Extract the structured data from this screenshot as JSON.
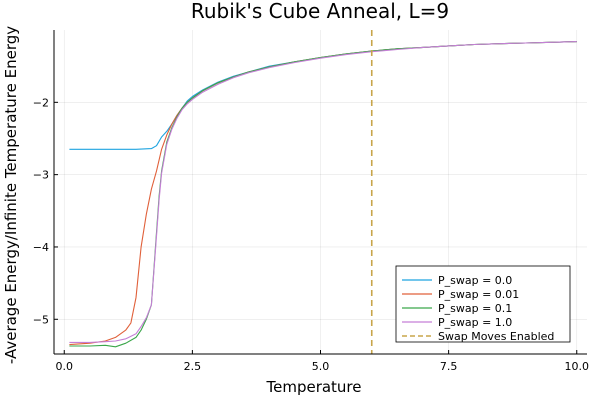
{
  "chart_data": {
    "type": "line",
    "title": "Rubik's Cube Anneal, L=9",
    "xlabel": "Temperature",
    "ylabel": "-Average Energy/Infinite Temperature Energy",
    "xlim": [
      -0.2,
      10.2
    ],
    "ylim": [
      -5.48,
      -1.0
    ],
    "xticks": [
      0.0,
      2.5,
      5.0,
      7.5,
      10.0
    ],
    "xtick_labels": [
      "0.0",
      "2.5",
      "5.0",
      "7.5",
      "10.0"
    ],
    "yticks": [
      -5,
      -4,
      -3,
      -2
    ],
    "ytick_labels": [
      "−5",
      "−4",
      "−3",
      "−2"
    ],
    "grid": true,
    "legend_position": "bottom-right",
    "vline": {
      "name": "Swap Moves Enabled",
      "x": 6.0,
      "color": "#c8a54a",
      "style": "dashed"
    },
    "series": [
      {
        "name": "P_swap = 0.0",
        "color": "#1fa4e0",
        "x": [
          0.1,
          0.5,
          1.0,
          1.4,
          1.7,
          1.8,
          1.9,
          2.0,
          2.1,
          2.2,
          2.3,
          2.4,
          2.5,
          2.7,
          3.0,
          3.3,
          3.6,
          4.0,
          4.5,
          5.0,
          5.5,
          6.0,
          6.5,
          7.0,
          7.5,
          8.0,
          8.5,
          9.0,
          9.5,
          10.0
        ],
        "y": [
          -2.65,
          -2.65,
          -2.65,
          -2.65,
          -2.64,
          -2.6,
          -2.48,
          -2.4,
          -2.3,
          -2.18,
          -2.08,
          -1.98,
          -1.92,
          -1.83,
          -1.72,
          -1.64,
          -1.58,
          -1.5,
          -1.44,
          -1.38,
          -1.33,
          -1.29,
          -1.26,
          -1.24,
          -1.22,
          -1.2,
          -1.19,
          -1.18,
          -1.17,
          -1.16
        ]
      },
      {
        "name": "P_swap = 0.01",
        "color": "#e0603a",
        "x": [
          0.1,
          0.5,
          0.8,
          1.0,
          1.2,
          1.3,
          1.4,
          1.5,
          1.6,
          1.7,
          1.8,
          1.9,
          2.0,
          2.1,
          2.2,
          2.3,
          2.4,
          2.5,
          2.7,
          3.0,
          3.3,
          3.6,
          4.0,
          4.5,
          5.0,
          5.5,
          6.0,
          6.5,
          7.0,
          7.5,
          8.0,
          8.5,
          9.0,
          9.5,
          10.0
        ],
        "y": [
          -5.35,
          -5.33,
          -5.3,
          -5.25,
          -5.15,
          -5.05,
          -4.7,
          -4.0,
          -3.55,
          -3.2,
          -2.95,
          -2.65,
          -2.45,
          -2.3,
          -2.18,
          -2.08,
          -2.0,
          -1.94,
          -1.84,
          -1.73,
          -1.65,
          -1.58,
          -1.51,
          -1.44,
          -1.38,
          -1.33,
          -1.29,
          -1.26,
          -1.24,
          -1.22,
          -1.2,
          -1.19,
          -1.18,
          -1.17,
          -1.16
        ]
      },
      {
        "name": "P_swap = 0.1",
        "color": "#3aa64a",
        "x": [
          0.1,
          0.5,
          0.8,
          1.0,
          1.2,
          1.4,
          1.5,
          1.6,
          1.7,
          1.8,
          1.85,
          1.9,
          2.0,
          2.1,
          2.2,
          2.3,
          2.4,
          2.5,
          2.7,
          3.0,
          3.3,
          3.6,
          4.0,
          4.5,
          5.0,
          5.5,
          6.0,
          6.5,
          7.0,
          7.5,
          8.0,
          8.5,
          9.0,
          9.5,
          10.0
        ],
        "y": [
          -5.37,
          -5.37,
          -5.36,
          -5.38,
          -5.33,
          -5.25,
          -5.15,
          -5.0,
          -4.8,
          -3.8,
          -3.3,
          -2.95,
          -2.55,
          -2.35,
          -2.2,
          -2.08,
          -2.0,
          -1.94,
          -1.84,
          -1.73,
          -1.65,
          -1.58,
          -1.51,
          -1.44,
          -1.38,
          -1.33,
          -1.29,
          -1.26,
          -1.24,
          -1.22,
          -1.2,
          -1.19,
          -1.18,
          -1.17,
          -1.16
        ]
      },
      {
        "name": "P_swap = 1.0",
        "color": "#c57fd6",
        "x": [
          0.1,
          0.5,
          0.8,
          1.0,
          1.2,
          1.4,
          1.5,
          1.6,
          1.7,
          1.8,
          1.85,
          1.9,
          2.0,
          2.1,
          2.2,
          2.3,
          2.4,
          2.5,
          2.7,
          3.0,
          3.3,
          3.6,
          4.0,
          4.5,
          5.0,
          5.5,
          6.0,
          6.5,
          7.0,
          7.5,
          8.0,
          8.5,
          9.0,
          9.5,
          10.0
        ],
        "y": [
          -5.32,
          -5.32,
          -5.31,
          -5.3,
          -5.27,
          -5.2,
          -5.1,
          -4.98,
          -4.8,
          -3.85,
          -3.35,
          -2.98,
          -2.58,
          -2.37,
          -2.22,
          -2.1,
          -2.02,
          -1.96,
          -1.86,
          -1.75,
          -1.66,
          -1.59,
          -1.52,
          -1.45,
          -1.39,
          -1.34,
          -1.3,
          -1.27,
          -1.24,
          -1.22,
          -1.2,
          -1.19,
          -1.18,
          -1.17,
          -1.16
        ]
      }
    ]
  }
}
